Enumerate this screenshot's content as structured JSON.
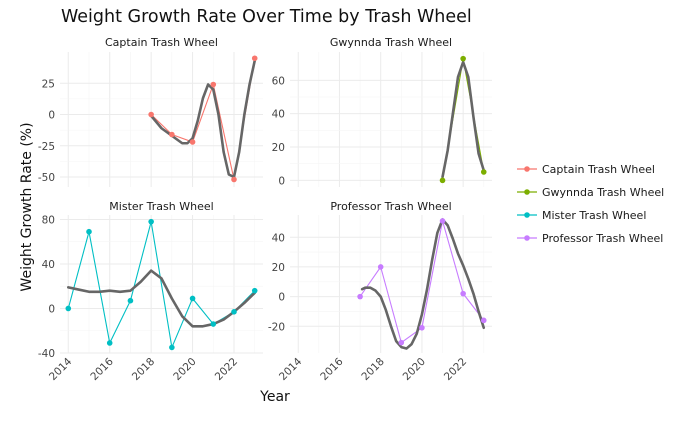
{
  "chart_data": {
    "type": "line",
    "title": "Weight Growth Rate Over Time by Trash Wheel",
    "xlabel": "Year",
    "ylabel": "Weight Growth Rate (%)",
    "grid": true,
    "legend_position": "right",
    "x_ticks": [
      "2014",
      "2016",
      "2018",
      "2020",
      "2022"
    ],
    "xlim": [
      2013.6,
      2023.4
    ],
    "smooth_color": "#666666",
    "series": [
      {
        "name": "Captain Trash Wheel",
        "color": "#F8766D",
        "x": [
          2018,
          2019,
          2020,
          2021,
          2022,
          2023
        ],
        "y": [
          0,
          -16,
          -22,
          24,
          -52,
          45
        ]
      },
      {
        "name": "Gwynnda Trash Wheel",
        "color": "#7CAE00",
        "x": [
          2021,
          2022,
          2023
        ],
        "y": [
          0,
          73,
          5
        ]
      },
      {
        "name": "Mister Trash Wheel",
        "color": "#00BFC4",
        "x": [
          2014,
          2015,
          2016,
          2017,
          2018,
          2019,
          2020,
          2021,
          2022,
          2023
        ],
        "y": [
          0,
          69,
          -31,
          7,
          78,
          -35,
          9,
          -14,
          -3,
          16
        ]
      },
      {
        "name": "Professor Trash Wheel",
        "color": "#C77CFF",
        "x": [
          2017,
          2018,
          2019,
          2020,
          2021,
          2022,
          2023
        ],
        "y": [
          0,
          20,
          -31,
          -21,
          51,
          2,
          -16
        ]
      }
    ],
    "facets": [
      {
        "series": 0,
        "title": "Captain Trash Wheel",
        "yticks": [
          -50,
          -25,
          0,
          25
        ],
        "ylim": [
          -58,
          50
        ],
        "smooth": {
          "x": [
            2018,
            2018.25,
            2018.5,
            2018.75,
            2019,
            2019.25,
            2019.5,
            2019.75,
            2020,
            2020.25,
            2020.5,
            2020.75,
            2021,
            2021.25,
            2021.5,
            2021.75,
            2022,
            2022.25,
            2022.5,
            2022.75,
            2023
          ],
          "y": [
            -1,
            -6,
            -11,
            -14,
            -17,
            -20,
            -23,
            -23,
            -19,
            -5,
            13,
            24,
            20,
            0,
            -30,
            -48,
            -50,
            -30,
            0,
            24,
            43
          ]
        }
      },
      {
        "series": 1,
        "title": "Gwynnda Trash Wheel",
        "yticks": [
          0,
          20,
          40,
          60
        ],
        "ylim": [
          -4,
          77
        ],
        "smooth": {
          "x": [
            2021,
            2021.25,
            2021.5,
            2021.75,
            2022,
            2022.25,
            2022.5,
            2022.75,
            2023
          ],
          "y": [
            2,
            18,
            40,
            62,
            71,
            62,
            38,
            16,
            6
          ]
        }
      },
      {
        "series": 2,
        "title": "Mister Trash Wheel",
        "yticks": [
          -40,
          0,
          40,
          80
        ],
        "ylim": [
          -40,
          84
        ],
        "smooth": {
          "x": [
            2014,
            2014.5,
            2015,
            2015.5,
            2016,
            2016.5,
            2017,
            2017.5,
            2018,
            2018.5,
            2019,
            2019.5,
            2020,
            2020.5,
            2021,
            2021.5,
            2022,
            2022.5,
            2023
          ],
          "y": [
            19,
            17,
            15,
            15,
            16,
            15,
            16,
            24,
            34,
            27,
            9,
            -7,
            -16,
            -16,
            -14,
            -10,
            -3,
            5,
            14
          ]
        }
      },
      {
        "series": 3,
        "title": "Professor Trash Wheel",
        "yticks": [
          -20,
          0,
          20,
          40
        ],
        "ylim": [
          -38,
          55
        ],
        "smooth": {
          "x": [
            2017.1,
            2017.25,
            2017.5,
            2017.75,
            2018,
            2018.25,
            2018.5,
            2018.75,
            2019,
            2019.25,
            2019.5,
            2019.75,
            2020,
            2020.25,
            2020.5,
            2020.75,
            2021,
            2021.25,
            2021.5,
            2021.75,
            2022,
            2022.25,
            2022.5,
            2022.75,
            2023
          ],
          "y": [
            5,
            6,
            6,
            4,
            0,
            -9,
            -20,
            -30,
            -34,
            -35,
            -32,
            -25,
            -12,
            5,
            25,
            43,
            52,
            48,
            39,
            29,
            21,
            12,
            2,
            -10,
            -21
          ]
        }
      }
    ]
  }
}
